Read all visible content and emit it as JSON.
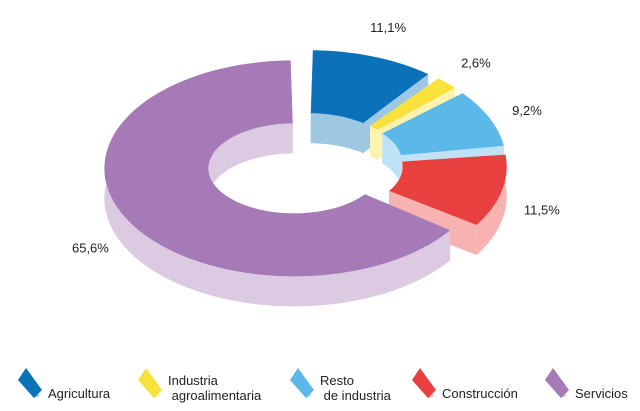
{
  "chart_data": {
    "type": "donut3d",
    "categories": [
      "Agricultura",
      "Industria agroalimentaria",
      "Resto de industria",
      "Construcción",
      "Servicios"
    ],
    "values": [
      11.1,
      2.6,
      9.2,
      11.5,
      65.6
    ],
    "value_labels": [
      "11,1%",
      "2,6%",
      "9,2%",
      "11,5%",
      "65,6%"
    ],
    "colors": [
      "#0b72ba",
      "#f9e13c",
      "#5cb8e8",
      "#e8403f",
      "#a57ab6"
    ],
    "legend": "bottom"
  }
}
